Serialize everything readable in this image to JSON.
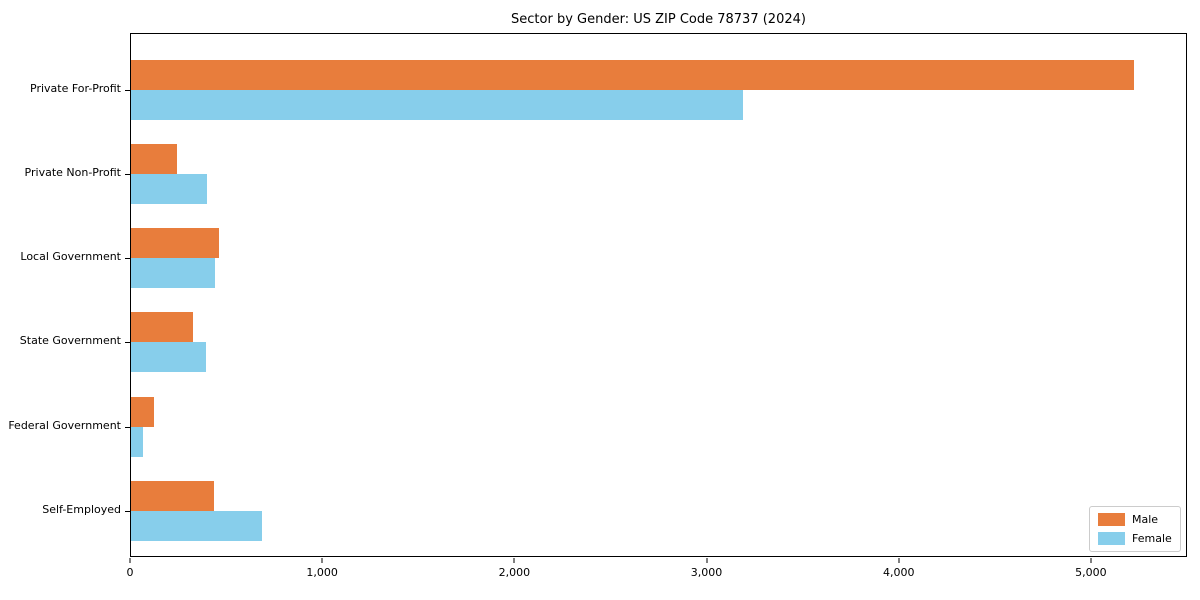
{
  "title": "Sector by Gender: US ZIP Code 78737 (2024)",
  "chart_data": {
    "type": "bar",
    "orientation": "horizontal",
    "title": "Sector by Gender: US ZIP Code 78737 (2024)",
    "xlabel": "",
    "ylabel": "",
    "categories": [
      "Private For-Profit",
      "Private Non-Profit",
      "Local Government",
      "State Government",
      "Federal Government",
      "Self-Employed"
    ],
    "series": [
      {
        "name": "Male",
        "color": "#E87D3C",
        "values": [
          5230,
          240,
          460,
          325,
          120,
          435
        ]
      },
      {
        "name": "Female",
        "color": "#87CEEB",
        "values": [
          3190,
          395,
          440,
          390,
          60,
          685
        ]
      }
    ],
    "xlim": [
      0,
      5500
    ],
    "x_ticks": [
      0,
      1000,
      2000,
      3000,
      4000,
      5000
    ],
    "x_tick_labels": [
      "0",
      "1,000",
      "2,000",
      "3,000",
      "4,000",
      "5,000"
    ],
    "grid": false,
    "legend_position": "lower right"
  }
}
